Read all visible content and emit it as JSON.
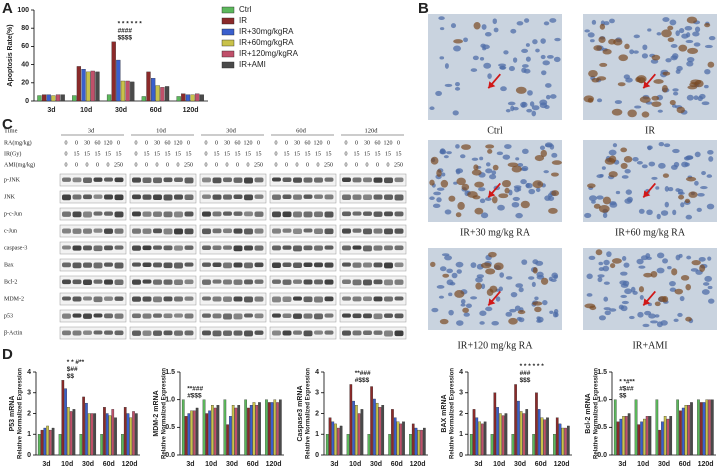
{
  "panel_labels": [
    "A",
    "B",
    "C",
    "D"
  ],
  "chart_data": [
    {
      "type": "bar",
      "y_label": "Apoptosis Rate(%)",
      "categories": [
        "3d",
        "10d",
        "30d",
        "60d",
        "120d"
      ],
      "series": [
        {
          "name": "Ctrl",
          "color": "#5cb85c",
          "values": [
            6,
            6,
            7,
            5,
            5
          ]
        },
        {
          "name": "IR",
          "color": "#8b2a2a",
          "values": [
            7,
            38,
            65,
            32,
            8
          ]
        },
        {
          "name": "IR+30mg/kgRA",
          "color": "#3a5fcd",
          "values": [
            7,
            35,
            45,
            25,
            7
          ]
        },
        {
          "name": "IR+60mg/kgRA",
          "color": "#c9c24a",
          "values": [
            6,
            32,
            22,
            17,
            7
          ]
        },
        {
          "name": "IR+120mg/kgRA",
          "color": "#c0506a",
          "values": [
            7,
            33,
            22,
            15,
            8
          ]
        },
        {
          "name": "IR+AMI",
          "color": "#4a4a4a",
          "values": [
            7,
            32,
            21,
            16,
            7
          ]
        }
      ],
      "ylim": [
        0,
        100
      ],
      "yticks": [
        0,
        20,
        40,
        60,
        80,
        100
      ],
      "legend": "right",
      "annotations": [
        "* * * * * *",
        "####",
        "$$$$"
      ]
    },
    {
      "type": "bar",
      "y_label": "P53 mRNA",
      "y_sublabel": "Relative Normalized Expression",
      "categories": [
        "3d",
        "10d",
        "30d",
        "60d",
        "120d"
      ],
      "series": [
        {
          "color": "#5cb85c",
          "values": [
            1.0,
            1.0,
            1.0,
            1.0,
            1.0
          ]
        },
        {
          "color": "#8b2a2a",
          "values": [
            1.2,
            3.6,
            2.8,
            2.3,
            2.3
          ]
        },
        {
          "color": "#3a5fcd",
          "values": [
            1.3,
            3.2,
            2.5,
            2.0,
            2.0
          ]
        },
        {
          "color": "#c9c24a",
          "values": [
            1.4,
            2.3,
            2.0,
            1.9,
            1.8
          ]
        },
        {
          "color": "#c0506a",
          "values": [
            1.2,
            2.1,
            2.0,
            2.2,
            2.1
          ]
        },
        {
          "color": "#4a4a4a",
          "values": [
            1.3,
            2.2,
            2.0,
            1.8,
            2.0
          ]
        }
      ],
      "ylim": [
        0,
        4
      ],
      "yticks": [
        0,
        1,
        2,
        3,
        4
      ],
      "annotations": [
        "* * #**",
        "$##",
        "$$"
      ]
    },
    {
      "type": "bar",
      "y_label": "MDM-2 mRNA",
      "y_sublabel": "Relative Normalized Expression",
      "categories": [
        "3d",
        "10d",
        "30d",
        "60d",
        "120d"
      ],
      "series": [
        {
          "color": "#5cb85c",
          "values": [
            1.0,
            1.0,
            1.0,
            1.0,
            1.0
          ]
        },
        {
          "color": "#8b2a2a",
          "values": [
            0.7,
            0.75,
            0.55,
            0.85,
            0.95
          ]
        },
        {
          "color": "#3a5fcd",
          "values": [
            0.75,
            0.8,
            0.7,
            0.9,
            0.95
          ]
        },
        {
          "color": "#c9c24a",
          "values": [
            0.8,
            0.9,
            0.9,
            0.95,
            1.0
          ]
        },
        {
          "color": "#c0506a",
          "values": [
            0.8,
            0.85,
            0.85,
            0.9,
            0.95
          ]
        },
        {
          "color": "#4a4a4a",
          "values": [
            0.85,
            0.9,
            0.9,
            0.95,
            1.0
          ]
        }
      ],
      "ylim": [
        0,
        1.5
      ],
      "yticks": [
        {
          "value": 0,
          "label": "0.0"
        },
        {
          "value": 0.5,
          "label": "0.5"
        },
        {
          "value": 1,
          "label": "1.0"
        },
        {
          "value": 1.5,
          "label": "1.5"
        }
      ],
      "annotations": [
        "**###",
        "#$$$"
      ]
    },
    {
      "type": "bar",
      "y_label": "Caspase3 mRNA",
      "y_sublabel": "Relative Normalized Expression",
      "categories": [
        "3d",
        "10d",
        "30d",
        "60d",
        "120d"
      ],
      "series": [
        {
          "color": "#5cb85c",
          "values": [
            1.0,
            1.0,
            1.0,
            1.0,
            1.0
          ]
        },
        {
          "color": "#8b2a2a",
          "values": [
            1.8,
            3.4,
            3.3,
            2.2,
            1.5
          ]
        },
        {
          "color": "#3a5fcd",
          "values": [
            1.6,
            2.6,
            2.7,
            1.8,
            1.3
          ]
        },
        {
          "color": "#c9c24a",
          "values": [
            1.5,
            2.4,
            2.5,
            1.6,
            1.2
          ]
        },
        {
          "color": "#c0506a",
          "values": [
            1.3,
            2.0,
            2.3,
            1.5,
            1.2
          ]
        },
        {
          "color": "#4a4a4a",
          "values": [
            1.4,
            2.2,
            2.4,
            1.6,
            1.3
          ]
        }
      ],
      "ylim": [
        0,
        4
      ],
      "yticks": [
        0,
        1,
        2,
        3,
        4
      ],
      "annotations": [
        "**###",
        "#$$$"
      ]
    },
    {
      "type": "bar",
      "y_label": "BAX mRNA",
      "y_sublabel": "Relative Normalized Expression",
      "categories": [
        "3d",
        "10d",
        "30d",
        "60d",
        "120d"
      ],
      "series": [
        {
          "color": "#5cb85c",
          "values": [
            1.0,
            1.0,
            1.0,
            1.0,
            1.0
          ]
        },
        {
          "color": "#8b2a2a",
          "values": [
            2.2,
            3.0,
            3.4,
            3.0,
            1.8
          ]
        },
        {
          "color": "#3a5fcd",
          "values": [
            1.8,
            2.3,
            2.6,
            2.2,
            1.5
          ]
        },
        {
          "color": "#c9c24a",
          "values": [
            1.6,
            2.0,
            2.1,
            1.8,
            1.3
          ]
        },
        {
          "color": "#c0506a",
          "values": [
            1.5,
            1.9,
            2.0,
            1.7,
            1.3
          ]
        },
        {
          "color": "#4a4a4a",
          "values": [
            1.6,
            2.0,
            2.2,
            1.8,
            1.4
          ]
        }
      ],
      "ylim": [
        0,
        4
      ],
      "yticks": [
        0,
        1,
        2,
        3,
        4
      ],
      "annotations": [
        "* * * * * *",
        "###",
        "$$$"
      ]
    },
    {
      "type": "bar",
      "y_label": "Bcl-2 mRNA",
      "y_sublabel": "Relative Normalized Expression",
      "categories": [
        "3d",
        "10d",
        "30d",
        "60d",
        "120d"
      ],
      "series": [
        {
          "color": "#5cb85c",
          "values": [
            1.0,
            1.0,
            1.0,
            1.0,
            1.0
          ]
        },
        {
          "color": "#8b2a2a",
          "values": [
            0.6,
            0.55,
            0.45,
            0.8,
            0.95
          ]
        },
        {
          "color": "#3a5fcd",
          "values": [
            0.65,
            0.6,
            0.6,
            0.85,
            0.95
          ]
        },
        {
          "color": "#c9c24a",
          "values": [
            0.7,
            0.65,
            0.7,
            0.9,
            1.0
          ]
        },
        {
          "color": "#c0506a",
          "values": [
            0.7,
            0.7,
            0.65,
            0.9,
            1.0
          ]
        },
        {
          "color": "#4a4a4a",
          "values": [
            0.75,
            0.7,
            0.7,
            0.95,
            1.0
          ]
        }
      ],
      "ylim": [
        0,
        1.5
      ],
      "yticks": [
        {
          "value": 0,
          "label": "0.0"
        },
        {
          "value": 0.5,
          "label": "0.5"
        },
        {
          "value": 1,
          "label": "1.0"
        },
        {
          "value": 1.5,
          "label": "1.5"
        }
      ],
      "annotations": [
        "* *#**",
        "#$##",
        "$$"
      ]
    }
  ],
  "micrographs": [
    "Ctrl",
    "IR",
    "IR+30 mg/kg RA",
    "IR+60 mg/kg RA",
    "IR+120 mg/kg RA",
    "IR+AMI"
  ],
  "blot": {
    "time_label": "Time",
    "times": [
      "3d",
      "10d",
      "30d",
      "60d",
      "120d"
    ],
    "conditions": [
      {
        "label": "RA(mg/kg)",
        "values": [
          0,
          0,
          30,
          60,
          120,
          0
        ]
      },
      {
        "label": "IR(Gy)",
        "values": [
          0,
          15,
          15,
          15,
          15,
          15
        ]
      },
      {
        "label": "AMI(mg/kg)",
        "values": [
          0,
          0,
          0,
          0,
          0,
          250
        ]
      }
    ],
    "proteins": [
      "p-JNK",
      "JNK",
      "p-c-Jun",
      "c-Jun",
      "caspase-3",
      "Bax",
      "Bcl-2",
      "MDM-2",
      "p53",
      "β-Actin"
    ]
  }
}
